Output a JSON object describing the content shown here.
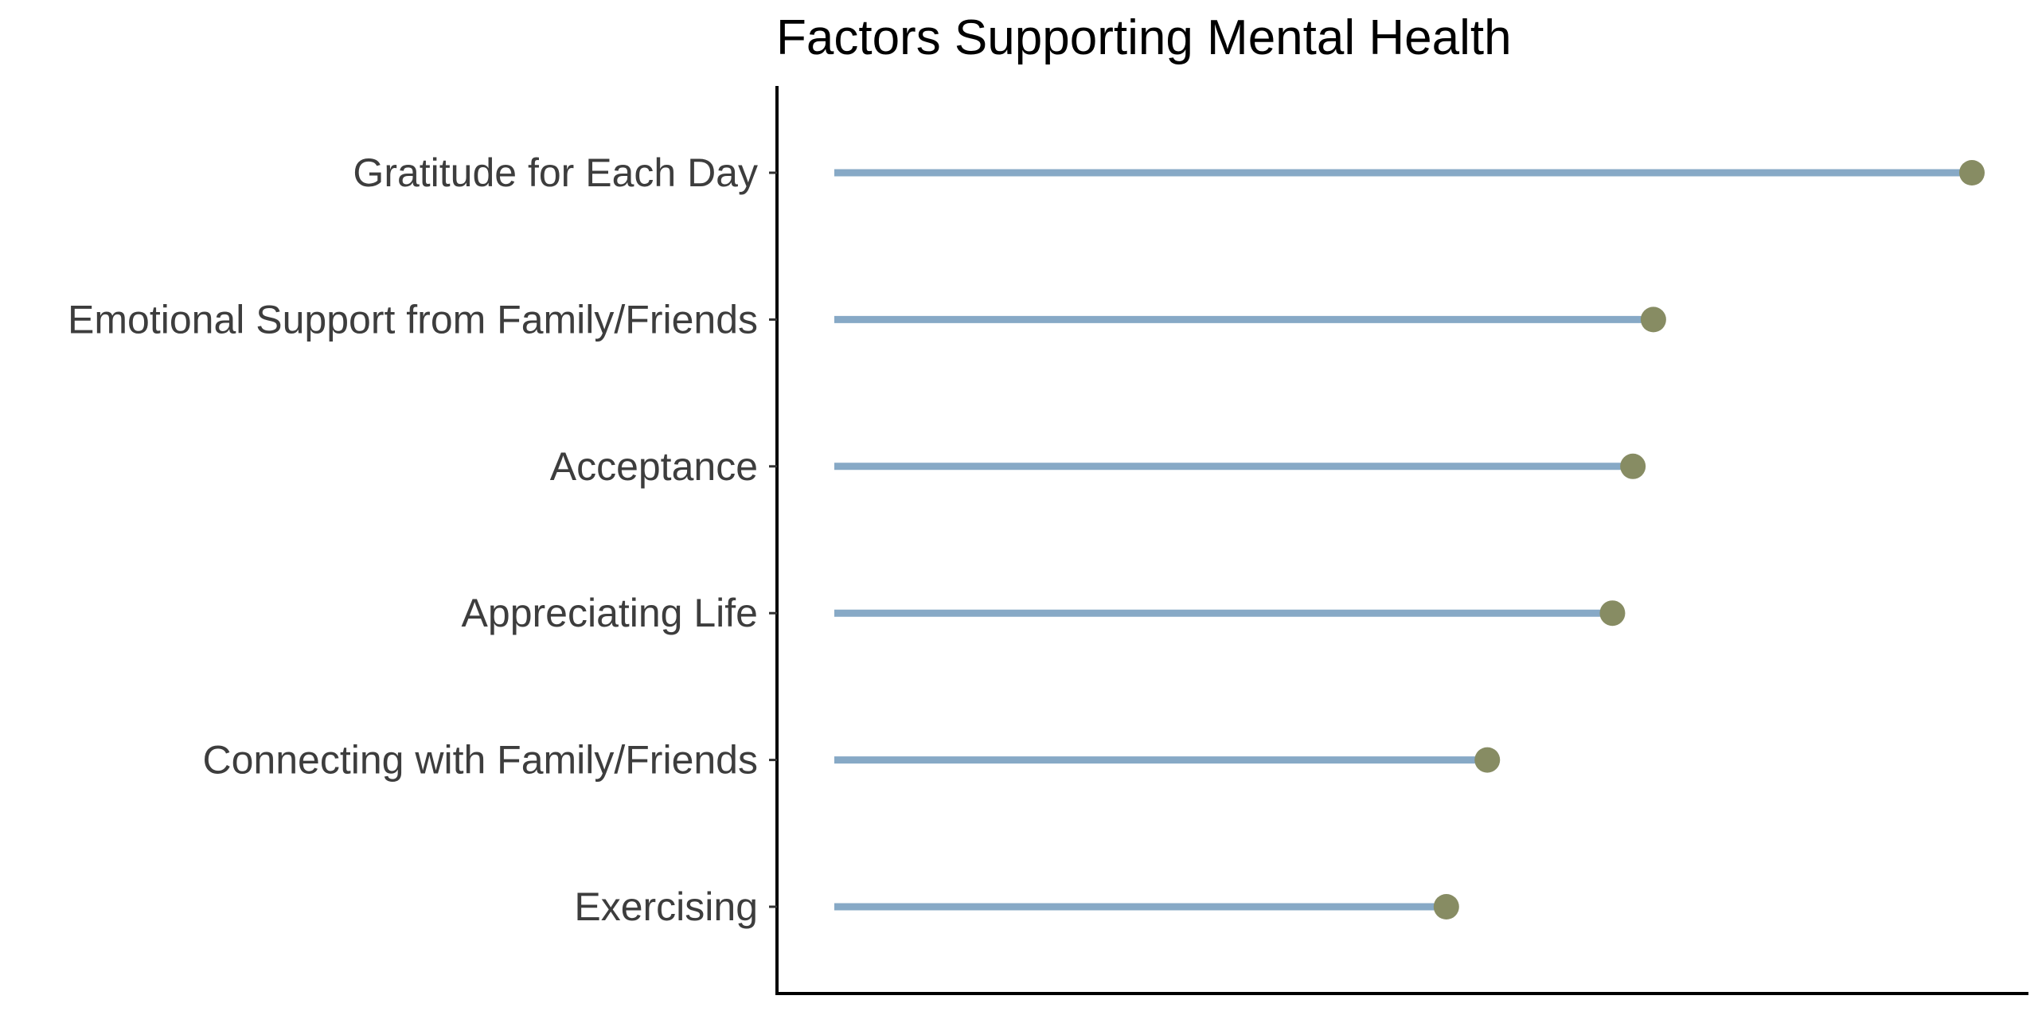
{
  "chart_data": {
    "type": "lollipop",
    "title": "Factors Supporting Mental Health",
    "xlabel": "",
    "ylabel": "",
    "categories": [
      "Gratitude for Each Day",
      "Emotional Support from Family/Friends",
      "Acceptance",
      "Appreciating Life",
      "Connecting with Family/Friends",
      "Exercising"
    ],
    "values": [
      100,
      72,
      70.2,
      68.4,
      57.4,
      53.8
    ],
    "x_axis_visible": false,
    "grid": false,
    "legend": "none",
    "colors": {
      "stem": "#87a9c6",
      "dot": "#878c63",
      "axis": "#000000",
      "tick_label": "#3d3d3d",
      "title": "#000000"
    }
  }
}
